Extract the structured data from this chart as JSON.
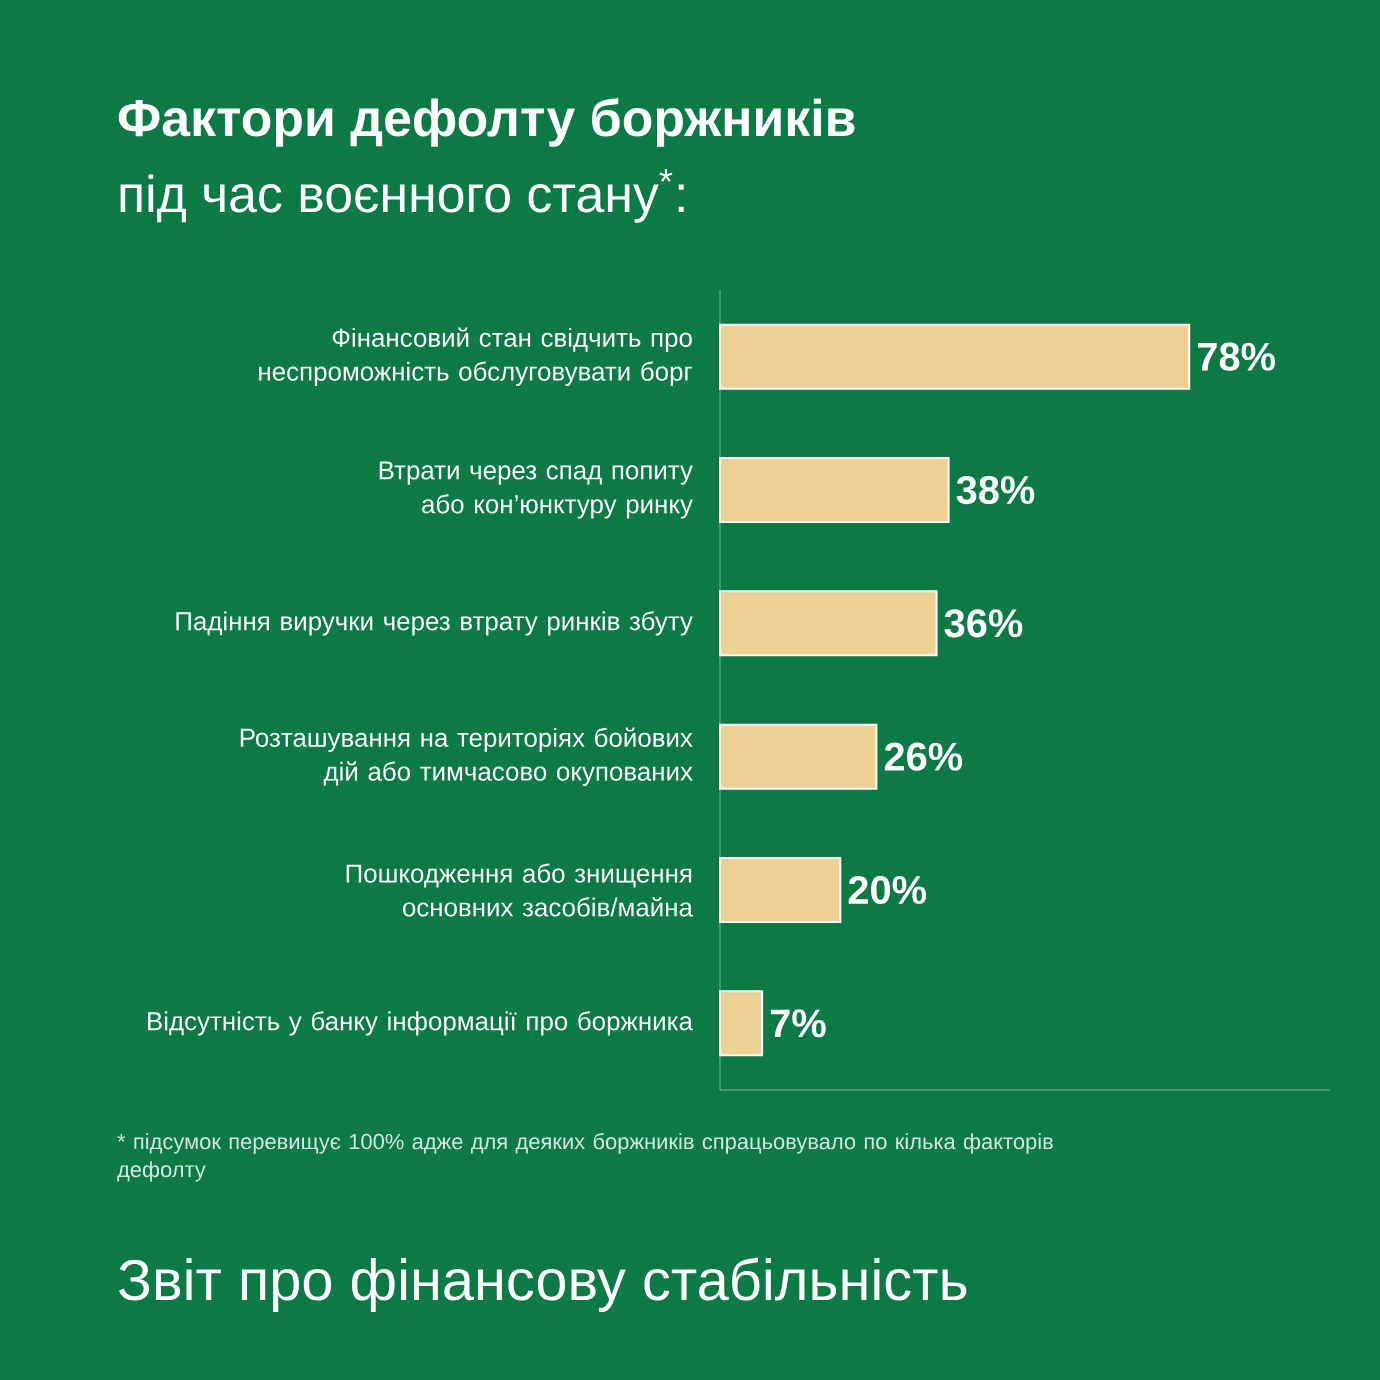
{
  "chart_data": {
    "type": "bar",
    "orientation": "horizontal",
    "title": "Фактори дефолту боржників",
    "subtitle": "під час воєнного стану$^{*}$:",
    "categories": [
      "Фінансовий стан свідчить про неспроможність обслуговувати борг",
      "Втрати через спад попиту або кон’юнктуру ринку",
      "Падіння виручки через втрату ринків збуту",
      "Розташування на територіях бойових дій або тимчасово окупованих",
      "Пошкодження або знищення основних засобів/майна",
      "Відсутність у банку інформації про боржника"
    ],
    "values": [
      78,
      38,
      36,
      26,
      20,
      7
    ],
    "value_labels": [
      "78%",
      "38%",
      "36%",
      "26%",
      "20%",
      "7%"
    ],
    "color": "#ecd094",
    "annotations": [
      "* підсумок перевищує 100% адже для деяких боржників спрацьовувало по кілька факторів дефолту",
      "Звіт про фінансову стабільність"
    ]
  }
}
